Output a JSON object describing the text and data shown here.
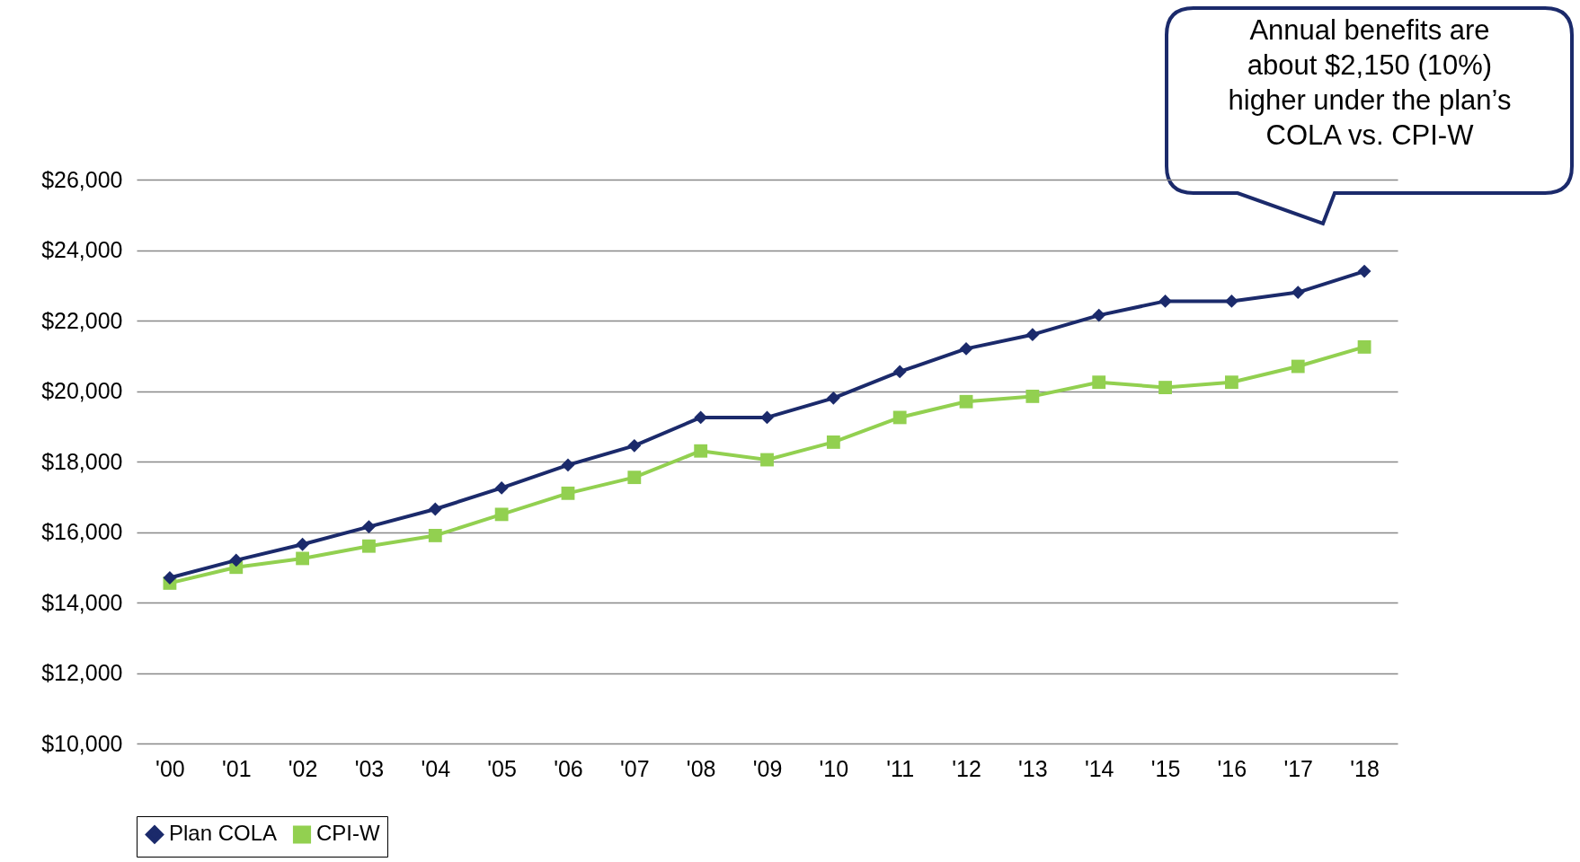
{
  "chart_data": {
    "type": "line",
    "categories": [
      "'00",
      "'01",
      "'02",
      "'03",
      "'04",
      "'05",
      "'06",
      "'07",
      "'08",
      "'09",
      "'10",
      "'11",
      "'12",
      "'13",
      "'14",
      "'15",
      "'16",
      "'17",
      "'18"
    ],
    "series": [
      {
        "name": "Plan COLA",
        "color": "#1b2a6b",
        "marker": "diamond",
        "values": [
          14700,
          15200,
          15650,
          16150,
          16650,
          17250,
          17900,
          18450,
          19250,
          19250,
          19800,
          20550,
          21200,
          21600,
          22150,
          22550,
          22550,
          22800,
          23400
        ]
      },
      {
        "name": "CPI-W",
        "color": "#92d050",
        "marker": "square",
        "values": [
          14550,
          15000,
          15250,
          15600,
          15900,
          16500,
          17100,
          17550,
          18300,
          18050,
          18550,
          19250,
          19700,
          19850,
          20250,
          20100,
          20250,
          20700,
          21250
        ]
      }
    ],
    "ylim": [
      10000,
      26000
    ],
    "yticks": [
      {
        "value": 10000,
        "label": "$10,000"
      },
      {
        "value": 12000,
        "label": "$12,000"
      },
      {
        "value": 14000,
        "label": "$14,000"
      },
      {
        "value": 16000,
        "label": "$16,000"
      },
      {
        "value": 18000,
        "label": "$18,000"
      },
      {
        "value": 20000,
        "label": "$20,000"
      },
      {
        "value": 22000,
        "label": "$22,000"
      },
      {
        "value": 24000,
        "label": "$24,000"
      },
      {
        "value": 26000,
        "label": "$26,000"
      }
    ],
    "grid": "y",
    "legend": "bottom",
    "line_style": "solid",
    "annotations": [
      "Annual benefits are\nabout $2,150 (10%)\nhigher under the plan’s\nCOLA vs. CPI-W"
    ]
  }
}
